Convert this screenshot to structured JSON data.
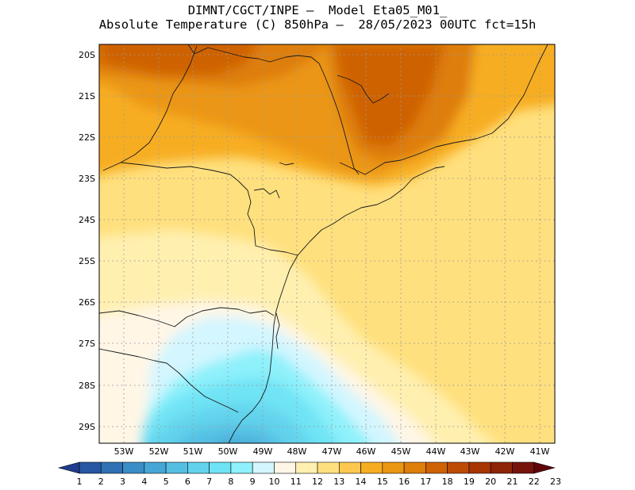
{
  "header": {
    "line1": "DIMNT/CGCT/INPE –  Model Eta05_M01_",
    "line2": "Absolute Temperature (C) 850hPa –  28/05/2023 00UTC fct=15h"
  },
  "map": {
    "lat_labels": [
      "20S",
      "21S",
      "22S",
      "23S",
      "24S",
      "25S",
      "26S",
      "27S",
      "28S",
      "29S"
    ],
    "lon_labels": [
      "53W",
      "52W",
      "51W",
      "50W",
      "49W",
      "48W",
      "47W",
      "46W",
      "45W",
      "44W",
      "43W",
      "42W",
      "41W"
    ],
    "lat_range": [
      -29.4,
      -19.9
    ],
    "lon_range": [
      -53.6,
      -40.6
    ],
    "grid": "dotted"
  },
  "colorbar": {
    "labels": [
      "1",
      "2",
      "3",
      "4",
      "5",
      "6",
      "7",
      "8",
      "9",
      "10",
      "11",
      "12",
      "13",
      "14",
      "15",
      "16",
      "17",
      "18",
      "19",
      "20",
      "21",
      "22",
      "23"
    ],
    "colors": [
      "#1f3c8c",
      "#2756a2",
      "#3071b4",
      "#3a8dc6",
      "#46a7d6",
      "#55bfe3",
      "#62d3ec",
      "#6fe3f5",
      "#8ef1fb",
      "#d3f6ff",
      "#fff6e6",
      "#fff0b0",
      "#ffe07e",
      "#fcc84f",
      "#f7ad21",
      "#eb9613",
      "#de7e0b",
      "#cf6204",
      "#be4b04",
      "#a73604",
      "#8e2506",
      "#76140b",
      "#600409"
    ]
  }
}
